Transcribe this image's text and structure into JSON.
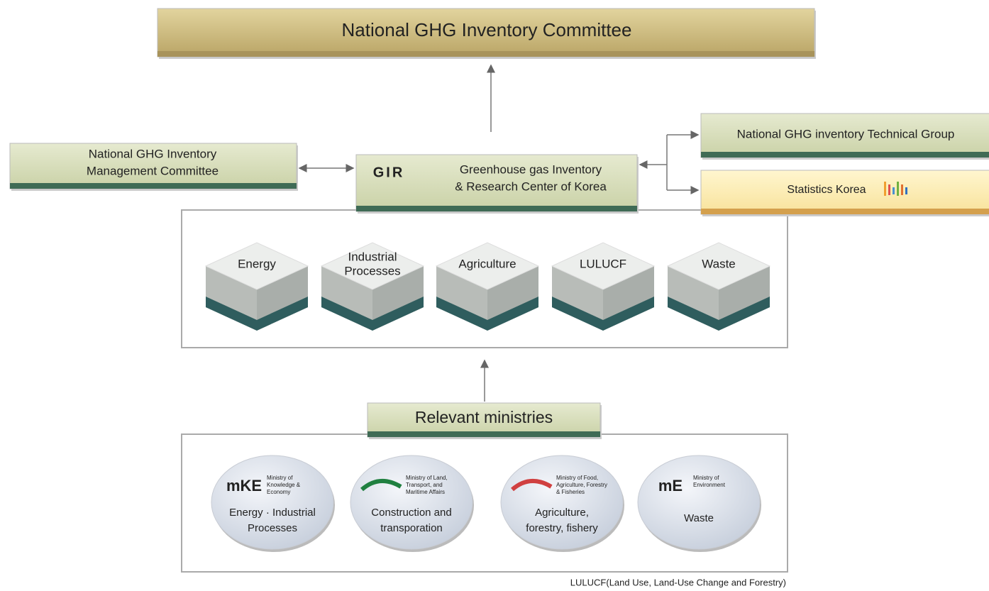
{
  "top": "National GHG Inventory Committee",
  "management": {
    "lines": [
      "National GHG Inventory",
      "Management Committee"
    ]
  },
  "center": {
    "logo": "GIR",
    "lines": [
      "Greenhouse gas Inventory",
      "& Research Center of Korea"
    ]
  },
  "technical_group": "National GHG inventory Technical Group",
  "statistics": "Statistics Korea",
  "sectors": [
    {
      "lines": [
        "Energy"
      ]
    },
    {
      "lines": [
        "Industrial",
        "Processes"
      ]
    },
    {
      "lines": [
        "Agriculture"
      ]
    },
    {
      "lines": [
        "LULUCF"
      ]
    },
    {
      "lines": [
        "Waste"
      ]
    }
  ],
  "ministries_title": "Relevant ministries",
  "ministries": [
    {
      "logo": "mKE",
      "name": [
        "Ministry of",
        "Knowledge &",
        "Economy"
      ],
      "role": [
        "Energy · Industrial",
        "Processes"
      ]
    },
    {
      "logo": "",
      "name": [
        "Ministry of Land,",
        "Transport, and",
        "Maritime Affairs"
      ],
      "role": [
        "Construction and",
        "transporation"
      ]
    },
    {
      "logo": "",
      "name": [
        "Ministry of Food,",
        "Agriculture, Forestry",
        "& Fisheries"
      ],
      "role": [
        "Agriculture,",
        "forestry, fishery"
      ]
    },
    {
      "logo": "mE",
      "name": [
        "Ministry of",
        "Environment"
      ],
      "role": [
        "Waste"
      ]
    }
  ],
  "footnote": "LULUCF(Land Use, Land-Use Change and Forestry)"
}
